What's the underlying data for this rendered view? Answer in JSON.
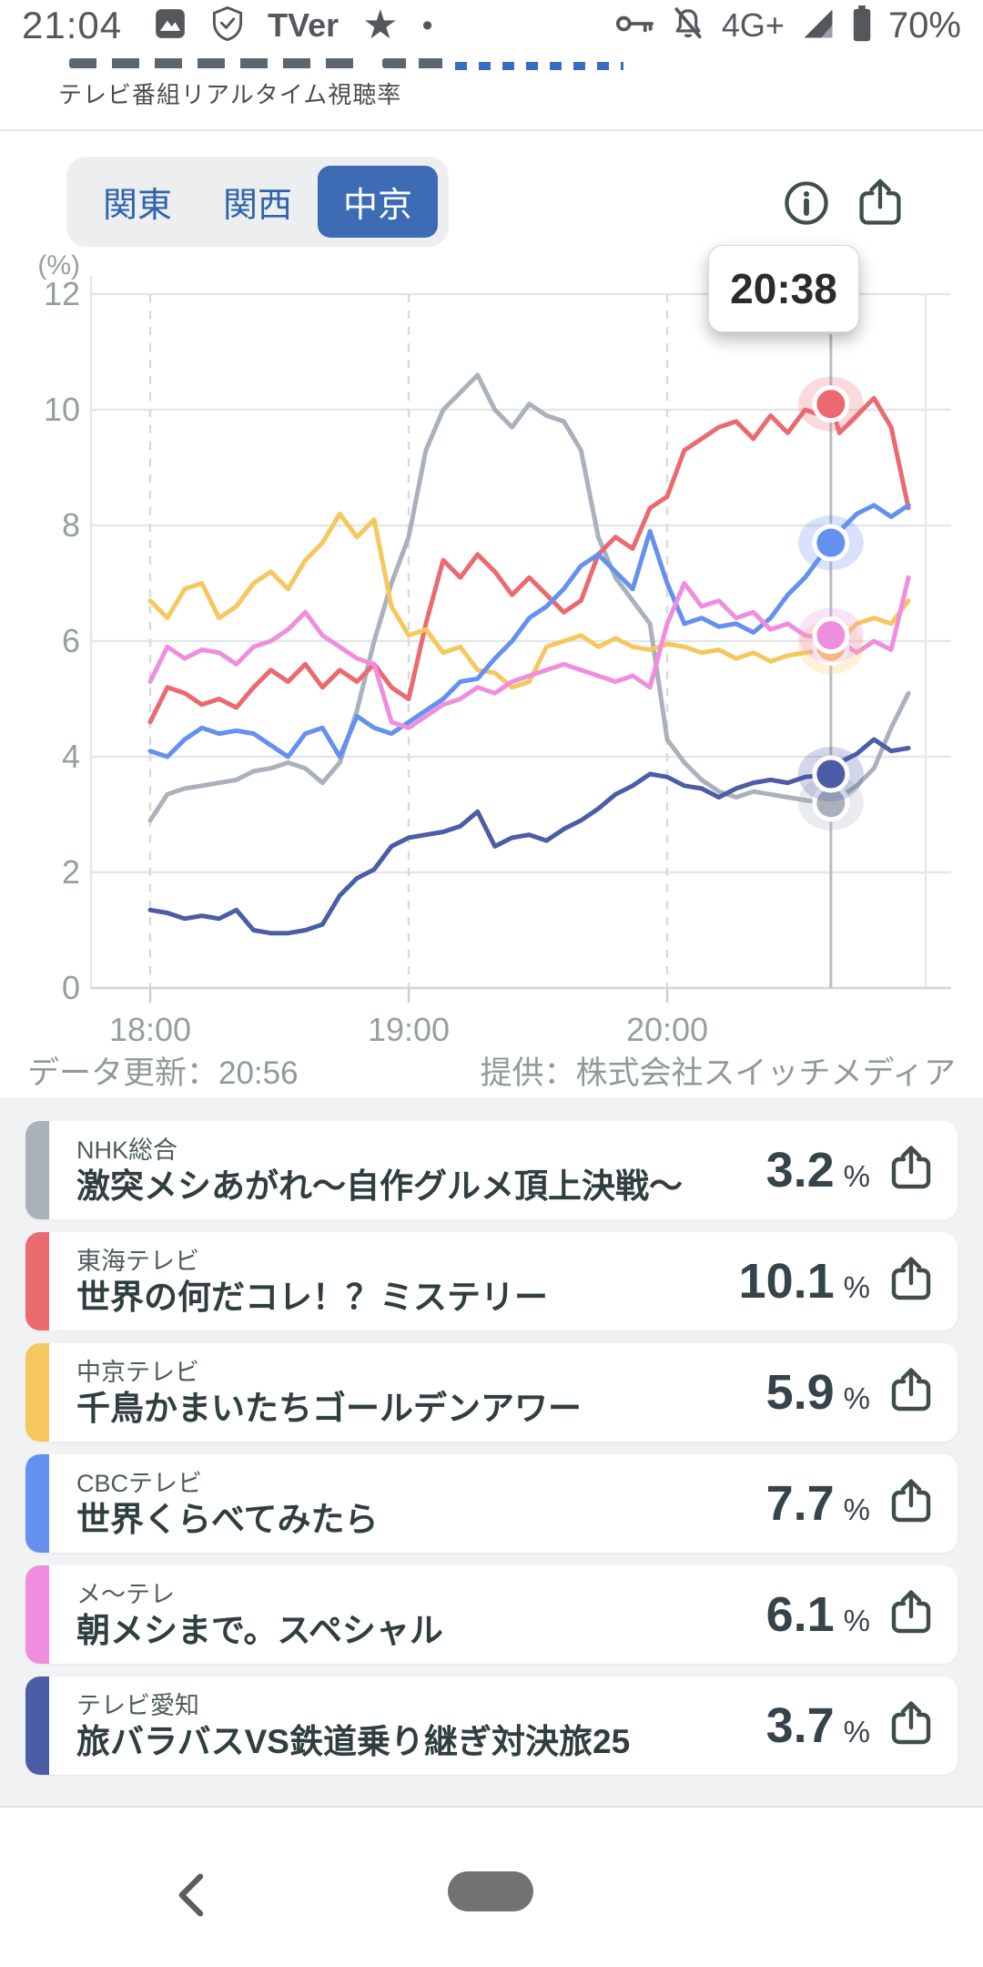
{
  "status_bar": {
    "time": "21:04",
    "tver_logo": "TVer",
    "star": "★",
    "dot": "•",
    "network": "4G+",
    "battery": "70%"
  },
  "header": {
    "subtitle": "テレビ番組リアルタイム視聴率"
  },
  "tabs": {
    "items": [
      {
        "label": "関東",
        "active": false
      },
      {
        "label": "関西",
        "active": false
      },
      {
        "label": "中京",
        "active": true
      }
    ],
    "active_bg": "#3d6cb4",
    "label_color": "#2f64ad"
  },
  "chart_footer": {
    "updated": "データ更新：20:56",
    "provider": "提供：株式会社スイッチメディア"
  },
  "channels": [
    {
      "network": "NHK総合",
      "program": "激突メシあがれ〜自作グルメ頂上決戦〜",
      "value": "3.2",
      "unit": "%",
      "color": "#aab1bb"
    },
    {
      "network": "東海テレビ",
      "program": "世界の何だコレ！？ミステリー",
      "value": "10.1",
      "unit": "%",
      "color": "#ea6a70"
    },
    {
      "network": "中京テレビ",
      "program": "千鳥かまいたちゴールデンアワー",
      "value": "5.9",
      "unit": "%",
      "color": "#f6c75f"
    },
    {
      "network": "CBCテレビ",
      "program": "世界くらべてみたら",
      "value": "7.7",
      "unit": "%",
      "color": "#6490f0"
    },
    {
      "network": "メ〜テレ",
      "program": "朝メシまで。スペシャル",
      "value": "6.1",
      "unit": "%",
      "color": "#ef8ede"
    },
    {
      "network": "テレビ愛知",
      "program": "旅バラバスVS鉄道乗り継ぎ対決旅25",
      "value": "3.7",
      "unit": "%",
      "color": "#4d5ca6"
    }
  ],
  "chart_data": {
    "type": "line",
    "title": "テレビ番組リアルタイム視聴率（中京）",
    "unit": "(%)",
    "ylim": [
      0,
      12.6
    ],
    "y_ticks": [
      12,
      10,
      8,
      6,
      4,
      2,
      0
    ],
    "x_ticks": [
      {
        "label": "18:00",
        "minute": 0
      },
      {
        "label": "19:00",
        "minute": 60
      },
      {
        "label": "20:00",
        "minute": 120
      }
    ],
    "x_end_minute": 176,
    "grid": true,
    "cursor": {
      "label": "20:38",
      "minute": 158,
      "values": [
        3.2,
        10.1,
        5.9,
        7.7,
        6.1,
        3.7
      ]
    },
    "minutes": [
      0,
      4,
      8,
      12,
      16,
      20,
      24,
      28,
      32,
      36,
      40,
      44,
      48,
      52,
      56,
      60,
      64,
      68,
      72,
      76,
      80,
      84,
      88,
      92,
      96,
      100,
      104,
      108,
      112,
      116,
      120,
      124,
      128,
      132,
      136,
      140,
      144,
      148,
      152,
      156,
      158,
      160,
      164,
      168,
      172,
      176
    ],
    "series": [
      {
        "name": "NHK総合",
        "color": "#aab1bb",
        "values": [
          2.9,
          3.35,
          3.45,
          3.5,
          3.55,
          3.6,
          3.75,
          3.8,
          3.9,
          3.8,
          3.55,
          3.9,
          4.8,
          6.0,
          7.0,
          7.8,
          9.3,
          10.0,
          10.3,
          10.6,
          10.0,
          9.7,
          10.1,
          9.9,
          9.8,
          9.3,
          7.8,
          7.1,
          6.7,
          6.3,
          4.3,
          3.9,
          3.6,
          3.4,
          3.3,
          3.4,
          3.35,
          3.3,
          3.25,
          3.2,
          3.2,
          3.3,
          3.5,
          3.8,
          4.5,
          5.1
        ]
      },
      {
        "name": "東海テレビ",
        "color": "#ea6a70",
        "values": [
          4.6,
          5.2,
          5.1,
          4.9,
          5.0,
          4.85,
          5.2,
          5.5,
          5.3,
          5.6,
          5.2,
          5.5,
          5.3,
          5.6,
          5.2,
          5.0,
          6.3,
          7.4,
          7.1,
          7.5,
          7.2,
          6.8,
          7.1,
          6.8,
          6.5,
          6.7,
          7.5,
          7.8,
          7.6,
          8.3,
          8.5,
          9.3,
          9.5,
          9.7,
          9.8,
          9.5,
          9.9,
          9.6,
          10.0,
          9.9,
          10.1,
          9.6,
          9.9,
          10.2,
          9.7,
          8.3
        ]
      },
      {
        "name": "中京テレビ",
        "color": "#f6c75f",
        "values": [
          6.7,
          6.4,
          6.9,
          7.0,
          6.4,
          6.6,
          7.0,
          7.2,
          6.9,
          7.4,
          7.7,
          8.2,
          7.8,
          8.1,
          6.6,
          6.1,
          6.2,
          5.8,
          5.9,
          5.5,
          5.45,
          5.2,
          5.3,
          5.9,
          6.0,
          6.1,
          5.9,
          6.05,
          5.9,
          5.85,
          5.95,
          5.9,
          5.8,
          5.85,
          5.7,
          5.8,
          5.65,
          5.75,
          5.8,
          5.85,
          5.9,
          6.0,
          6.3,
          6.4,
          6.3,
          6.7
        ]
      },
      {
        "name": "CBCテレビ",
        "color": "#6490f0",
        "values": [
          4.1,
          4.0,
          4.3,
          4.5,
          4.4,
          4.45,
          4.4,
          4.2,
          4.0,
          4.4,
          4.5,
          4.0,
          4.7,
          4.5,
          4.4,
          4.6,
          4.8,
          5.0,
          5.3,
          5.35,
          5.7,
          6.0,
          6.4,
          6.6,
          6.9,
          7.3,
          7.5,
          7.2,
          6.9,
          7.9,
          7.0,
          6.3,
          6.4,
          6.25,
          6.3,
          6.15,
          6.4,
          6.8,
          7.1,
          7.5,
          7.7,
          7.9,
          8.2,
          8.35,
          8.15,
          8.35
        ]
      },
      {
        "name": "メ〜テレ",
        "color": "#ef8ede",
        "values": [
          5.3,
          5.9,
          5.7,
          5.85,
          5.8,
          5.6,
          5.9,
          6.0,
          6.2,
          6.5,
          6.1,
          5.9,
          5.7,
          5.6,
          4.6,
          4.5,
          4.7,
          4.9,
          5.0,
          5.2,
          5.1,
          5.3,
          5.4,
          5.5,
          5.6,
          5.5,
          5.4,
          5.3,
          5.4,
          5.2,
          6.3,
          7.0,
          6.6,
          6.7,
          6.4,
          6.5,
          6.2,
          6.3,
          6.1,
          6.05,
          6.1,
          6.0,
          5.8,
          6.0,
          5.85,
          7.1
        ]
      },
      {
        "name": "テレビ愛知",
        "color": "#4d5ca6",
        "values": [
          1.35,
          1.3,
          1.2,
          1.25,
          1.2,
          1.35,
          1.0,
          0.95,
          0.95,
          1.0,
          1.1,
          1.6,
          1.9,
          2.05,
          2.45,
          2.6,
          2.65,
          2.7,
          2.8,
          3.05,
          2.45,
          2.6,
          2.65,
          2.55,
          2.75,
          2.9,
          3.1,
          3.35,
          3.5,
          3.7,
          3.65,
          3.5,
          3.45,
          3.3,
          3.45,
          3.55,
          3.6,
          3.55,
          3.65,
          3.68,
          3.7,
          3.9,
          4.05,
          4.3,
          4.1,
          4.15
        ]
      }
    ]
  }
}
